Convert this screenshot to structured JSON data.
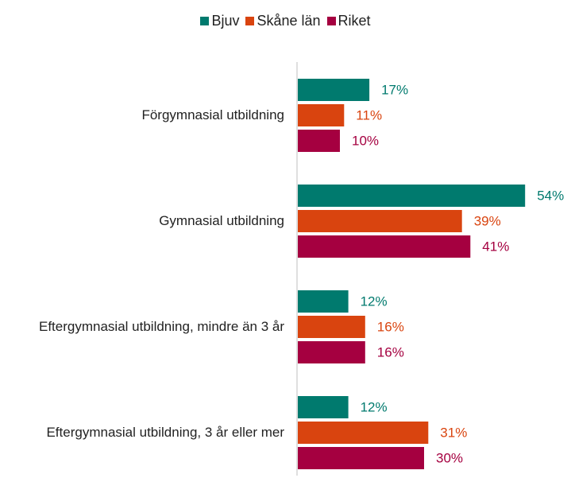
{
  "chart_data": {
    "type": "bar",
    "orientation": "horizontal",
    "categories": [
      "Förgymnasial utbildning",
      "Gymnasial utbildning",
      "Eftergymnasial utbildning, mindre än 3 år",
      "Eftergymnasial utbildning, 3 år eller mer"
    ],
    "series": [
      {
        "name": "Bjuv",
        "color": "#007a6e",
        "values": [
          17,
          54,
          12,
          12
        ],
        "value_labels": [
          "17%",
          "54%",
          "12%",
          "12%"
        ]
      },
      {
        "name": "Skåne län",
        "color": "#d9440f",
        "values": [
          11,
          39,
          16,
          31
        ],
        "value_labels": [
          "11%",
          "39%",
          "16%",
          "31%"
        ]
      },
      {
        "name": "Riket",
        "color": "#a50040",
        "values": [
          10,
          41,
          16,
          30
        ],
        "value_labels": [
          "10%",
          "41%",
          "16%",
          "30%"
        ]
      }
    ],
    "legend": "top"
  }
}
